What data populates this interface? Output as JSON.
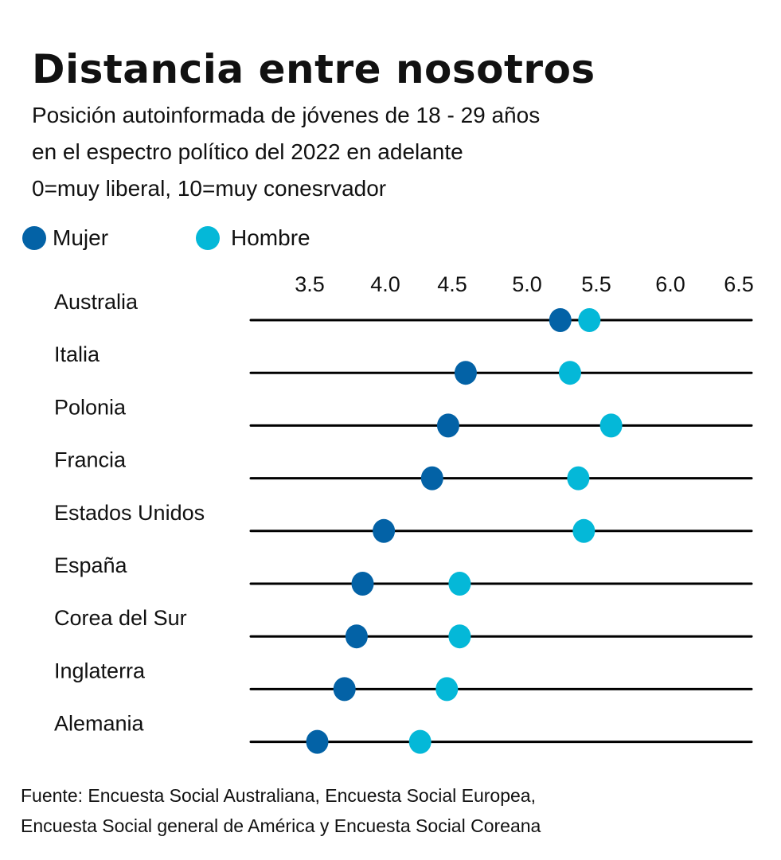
{
  "header": {
    "title": "Distancia entre nosotros",
    "subtitle_lines": [
      "Posición autoinformada de jóvenes de 18 - 29 años",
      "en el espectro político del 2022 en adelante",
      "0=muy liberal, 10=muy conesrvador"
    ]
  },
  "legend": {
    "items": [
      {
        "label": "Mujer",
        "color": "#0362a6"
      },
      {
        "label": "Hombre",
        "color": "#04b8d8"
      }
    ]
  },
  "source": {
    "lines": [
      "Fuente: Encuesta Social Australiana, Encuesta Social Europea,",
      "Encuesta Social general de América y Encuesta Social Coreana"
    ]
  },
  "chart_data": {
    "type": "scatter",
    "subtype": "dumbbell",
    "title": "Distancia entre nosotros",
    "xlabel": "",
    "ylabel": "",
    "x_ticks": [
      3.5,
      4.0,
      4.5,
      5.0,
      5.5,
      6.0,
      6.5
    ],
    "x_tick_labels": [
      "3.5",
      "4.0",
      "4.5",
      "5.0",
      "5.5",
      "6.0",
      "6.5"
    ],
    "xlim": [
      3.0,
      6.6
    ],
    "legend_position": "top-left",
    "grid": false,
    "categories": [
      "Australia",
      "Italia",
      "Polonia",
      "Francia",
      "Estados Unidos",
      "España",
      "Corea del Sur",
      "Inglaterra",
      "Alemania"
    ],
    "series": [
      {
        "name": "Mujer",
        "color": "#0362a6",
        "values": [
          5.24,
          4.59,
          4.47,
          4.35,
          3.99,
          3.85,
          3.81,
          3.73,
          3.55
        ]
      },
      {
        "name": "Hombre",
        "color": "#04b8d8",
        "values": [
          5.45,
          5.31,
          5.6,
          5.37,
          5.41,
          4.55,
          4.55,
          4.46,
          4.26
        ]
      }
    ]
  }
}
